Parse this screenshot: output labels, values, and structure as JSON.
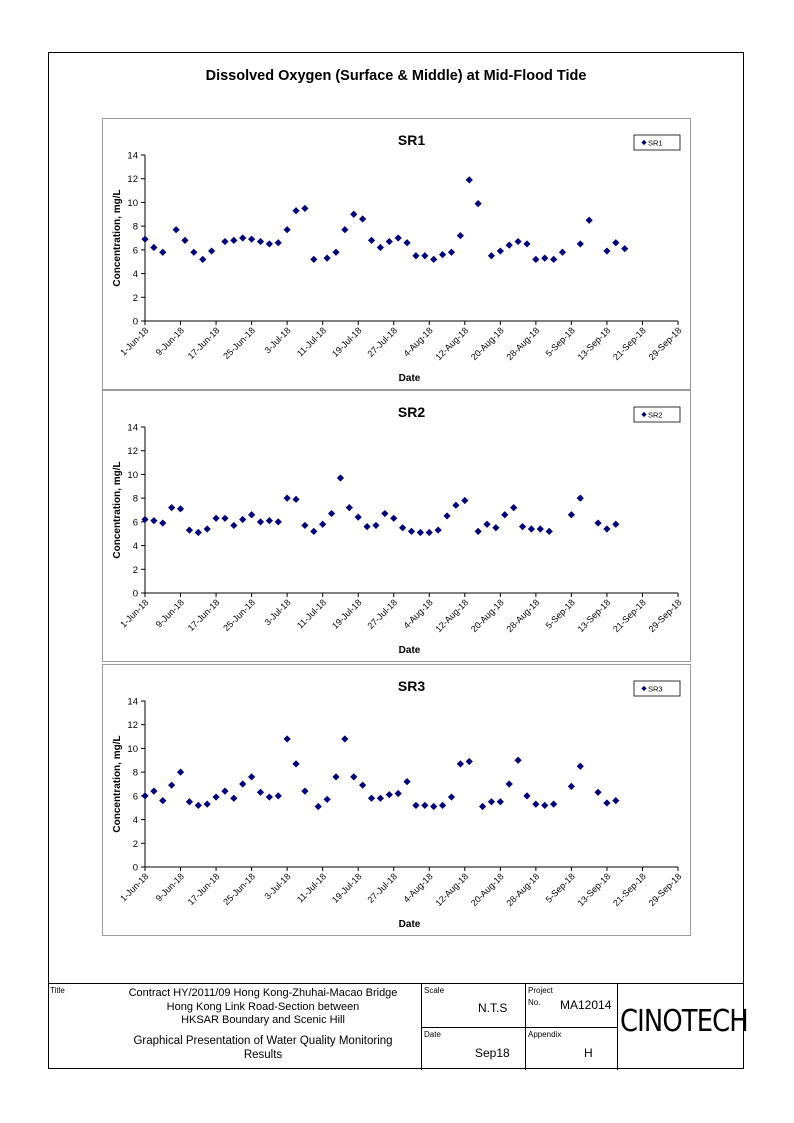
{
  "page_title": "Dissolved Oxygen (Surface & Middle) at Mid-Flood Tide",
  "chart_data": [
    {
      "type": "scatter",
      "title": "SR1",
      "xlabel": "Date",
      "ylabel": "Concentration, mg/L",
      "ylim": [
        0,
        14
      ],
      "yticks": [
        "0",
        "2",
        "4",
        "6",
        "8",
        "10",
        "12",
        "14"
      ],
      "xlim": [
        "2018-06-01",
        "2018-09-29"
      ],
      "xticks": [
        "1-Jun-18",
        "9-Jun-18",
        "17-Jun-18",
        "25-Jun-18",
        "3-Jul-18",
        "11-Jul-18",
        "19-Jul-18",
        "27-Jul-18",
        "4-Aug-18",
        "12-Aug-18",
        "20-Aug-18",
        "28-Aug-18",
        "5-Sep-18",
        "13-Sep-18",
        "21-Sep-18",
        "29-Sep-18"
      ],
      "legend": "top-right",
      "marker_color": "#00007a",
      "series": [
        {
          "name": "SR1",
          "points": [
            [
              "2018-06-01",
              6.9
            ],
            [
              "2018-06-03",
              6.2
            ],
            [
              "2018-06-05",
              5.8
            ],
            [
              "2018-06-08",
              7.7
            ],
            [
              "2018-06-10",
              6.8
            ],
            [
              "2018-06-12",
              5.8
            ],
            [
              "2018-06-14",
              5.2
            ],
            [
              "2018-06-16",
              5.9
            ],
            [
              "2018-06-19",
              6.7
            ],
            [
              "2018-06-21",
              6.8
            ],
            [
              "2018-06-23",
              7.0
            ],
            [
              "2018-06-25",
              6.9
            ],
            [
              "2018-06-27",
              6.7
            ],
            [
              "2018-06-29",
              6.5
            ],
            [
              "2018-07-01",
              6.6
            ],
            [
              "2018-07-03",
              7.7
            ],
            [
              "2018-07-05",
              9.3
            ],
            [
              "2018-07-07",
              9.5
            ],
            [
              "2018-07-09",
              5.2
            ],
            [
              "2018-07-12",
              5.3
            ],
            [
              "2018-07-14",
              5.8
            ],
            [
              "2018-07-16",
              7.7
            ],
            [
              "2018-07-18",
              9.0
            ],
            [
              "2018-07-20",
              8.6
            ],
            [
              "2018-07-22",
              6.8
            ],
            [
              "2018-07-24",
              6.2
            ],
            [
              "2018-07-26",
              6.7
            ],
            [
              "2018-07-28",
              7.0
            ],
            [
              "2018-07-30",
              6.6
            ],
            [
              "2018-08-01",
              5.5
            ],
            [
              "2018-08-03",
              5.5
            ],
            [
              "2018-08-05",
              5.2
            ],
            [
              "2018-08-07",
              5.6
            ],
            [
              "2018-08-09",
              5.8
            ],
            [
              "2018-08-11",
              7.2
            ],
            [
              "2018-08-13",
              11.9
            ],
            [
              "2018-08-15",
              9.9
            ],
            [
              "2018-08-18",
              5.5
            ],
            [
              "2018-08-20",
              5.9
            ],
            [
              "2018-08-22",
              6.4
            ],
            [
              "2018-08-24",
              6.7
            ],
            [
              "2018-08-26",
              6.5
            ],
            [
              "2018-08-28",
              5.2
            ],
            [
              "2018-08-30",
              5.3
            ],
            [
              "2018-09-01",
              5.2
            ],
            [
              "2018-09-03",
              5.8
            ],
            [
              "2018-09-07",
              6.5
            ],
            [
              "2018-09-09",
              8.5
            ],
            [
              "2018-09-13",
              5.9
            ],
            [
              "2018-09-15",
              6.6
            ],
            [
              "2018-09-17",
              6.1
            ]
          ]
        }
      ]
    },
    {
      "type": "scatter",
      "title": "SR2",
      "xlabel": "Date",
      "ylabel": "Concentration, mg/L",
      "ylim": [
        0,
        14
      ],
      "yticks": [
        "0",
        "2",
        "4",
        "6",
        "8",
        "10",
        "12",
        "14"
      ],
      "xlim": [
        "2018-06-01",
        "2018-09-29"
      ],
      "xticks": [
        "1-Jun-18",
        "9-Jun-18",
        "17-Jun-18",
        "25-Jun-18",
        "3-Jul-18",
        "11-Jul-18",
        "19-Jul-18",
        "27-Jul-18",
        "4-Aug-18",
        "12-Aug-18",
        "20-Aug-18",
        "28-Aug-18",
        "5-Sep-18",
        "13-Sep-18",
        "21-Sep-18",
        "29-Sep-18"
      ],
      "legend": "top-right",
      "marker_color": "#00007a",
      "series": [
        {
          "name": "SR2",
          "points": [
            [
              "2018-06-01",
              6.2
            ],
            [
              "2018-06-03",
              6.1
            ],
            [
              "2018-06-05",
              5.9
            ],
            [
              "2018-06-07",
              7.2
            ],
            [
              "2018-06-09",
              7.1
            ],
            [
              "2018-06-11",
              5.3
            ],
            [
              "2018-06-13",
              5.1
            ],
            [
              "2018-06-15",
              5.4
            ],
            [
              "2018-06-17",
              6.3
            ],
            [
              "2018-06-19",
              6.3
            ],
            [
              "2018-06-21",
              5.7
            ],
            [
              "2018-06-23",
              6.2
            ],
            [
              "2018-06-25",
              6.6
            ],
            [
              "2018-06-27",
              6.0
            ],
            [
              "2018-06-29",
              6.1
            ],
            [
              "2018-07-01",
              6.0
            ],
            [
              "2018-07-03",
              8.0
            ],
            [
              "2018-07-05",
              7.9
            ],
            [
              "2018-07-07",
              5.7
            ],
            [
              "2018-07-09",
              5.2
            ],
            [
              "2018-07-11",
              5.8
            ],
            [
              "2018-07-13",
              6.7
            ],
            [
              "2018-07-15",
              9.7
            ],
            [
              "2018-07-17",
              7.2
            ],
            [
              "2018-07-19",
              6.4
            ],
            [
              "2018-07-21",
              5.6
            ],
            [
              "2018-07-23",
              5.7
            ],
            [
              "2018-07-25",
              6.7
            ],
            [
              "2018-07-27",
              6.3
            ],
            [
              "2018-07-29",
              5.5
            ],
            [
              "2018-07-31",
              5.2
            ],
            [
              "2018-08-02",
              5.1
            ],
            [
              "2018-08-04",
              5.1
            ],
            [
              "2018-08-06",
              5.3
            ],
            [
              "2018-08-08",
              6.5
            ],
            [
              "2018-08-10",
              7.4
            ],
            [
              "2018-08-12",
              7.8
            ],
            [
              "2018-08-15",
              5.2
            ],
            [
              "2018-08-17",
              5.8
            ],
            [
              "2018-08-19",
              5.5
            ],
            [
              "2018-08-21",
              6.6
            ],
            [
              "2018-08-23",
              7.2
            ],
            [
              "2018-08-25",
              5.6
            ],
            [
              "2018-08-27",
              5.4
            ],
            [
              "2018-08-29",
              5.4
            ],
            [
              "2018-08-31",
              5.2
            ],
            [
              "2018-09-05",
              6.6
            ],
            [
              "2018-09-07",
              8.0
            ],
            [
              "2018-09-11",
              5.9
            ],
            [
              "2018-09-13",
              5.4
            ],
            [
              "2018-09-15",
              5.8
            ]
          ]
        }
      ]
    },
    {
      "type": "scatter",
      "title": "SR3",
      "xlabel": "Date",
      "ylabel": "Concentration, mg/L",
      "ylim": [
        0,
        14
      ],
      "yticks": [
        "0",
        "2",
        "4",
        "6",
        "8",
        "10",
        "12",
        "14"
      ],
      "xlim": [
        "2018-06-01",
        "2018-09-29"
      ],
      "xticks": [
        "1-Jun-18",
        "9-Jun-18",
        "17-Jun-18",
        "25-Jun-18",
        "3-Jul-18",
        "11-Jul-18",
        "19-Jul-18",
        "27-Jul-18",
        "4-Aug-18",
        "12-Aug-18",
        "20-Aug-18",
        "28-Aug-18",
        "5-Sep-18",
        "13-Sep-18",
        "21-Sep-18",
        "29-Sep-18"
      ],
      "legend": "top-right",
      "marker_color": "#00007a",
      "series": [
        {
          "name": "SR3",
          "points": [
            [
              "2018-06-01",
              6.0
            ],
            [
              "2018-06-03",
              6.4
            ],
            [
              "2018-06-05",
              5.6
            ],
            [
              "2018-06-07",
              6.9
            ],
            [
              "2018-06-09",
              8.0
            ],
            [
              "2018-06-11",
              5.5
            ],
            [
              "2018-06-13",
              5.2
            ],
            [
              "2018-06-15",
              5.3
            ],
            [
              "2018-06-17",
              5.9
            ],
            [
              "2018-06-19",
              6.4
            ],
            [
              "2018-06-21",
              5.8
            ],
            [
              "2018-06-23",
              7.0
            ],
            [
              "2018-06-25",
              7.6
            ],
            [
              "2018-06-27",
              6.3
            ],
            [
              "2018-06-29",
              5.9
            ],
            [
              "2018-07-01",
              6.0
            ],
            [
              "2018-07-03",
              10.8
            ],
            [
              "2018-07-05",
              8.7
            ],
            [
              "2018-07-07",
              6.4
            ],
            [
              "2018-07-10",
              5.1
            ],
            [
              "2018-07-12",
              5.7
            ],
            [
              "2018-07-14",
              7.6
            ],
            [
              "2018-07-16",
              10.8
            ],
            [
              "2018-07-18",
              7.6
            ],
            [
              "2018-07-20",
              6.9
            ],
            [
              "2018-07-22",
              5.8
            ],
            [
              "2018-07-24",
              5.8
            ],
            [
              "2018-07-26",
              6.1
            ],
            [
              "2018-07-28",
              6.2
            ],
            [
              "2018-07-30",
              7.2
            ],
            [
              "2018-08-01",
              5.2
            ],
            [
              "2018-08-03",
              5.2
            ],
            [
              "2018-08-05",
              5.1
            ],
            [
              "2018-08-07",
              5.2
            ],
            [
              "2018-08-09",
              5.9
            ],
            [
              "2018-08-11",
              8.7
            ],
            [
              "2018-08-13",
              8.9
            ],
            [
              "2018-08-16",
              5.1
            ],
            [
              "2018-08-18",
              5.5
            ],
            [
              "2018-08-20",
              5.5
            ],
            [
              "2018-08-22",
              7.0
            ],
            [
              "2018-08-24",
              9.0
            ],
            [
              "2018-08-26",
              6.0
            ],
            [
              "2018-08-28",
              5.3
            ],
            [
              "2018-08-30",
              5.2
            ],
            [
              "2018-09-01",
              5.3
            ],
            [
              "2018-09-05",
              6.8
            ],
            [
              "2018-09-07",
              8.5
            ],
            [
              "2018-09-11",
              6.3
            ],
            [
              "2018-09-13",
              5.4
            ],
            [
              "2018-09-15",
              5.6
            ]
          ]
        }
      ]
    }
  ],
  "title_block": {
    "title_label": "Title",
    "title_lines": [
      "Contract HY/2011/09 Hong Kong-Zhuhai-Macao Bridge",
      "Hong Kong Link Road-Section between",
      "HKSAR Boundary and Scenic Hill"
    ],
    "subtitle_lines": [
      "Graphical Presentation of Water Quality Monitoring",
      "Results"
    ],
    "scale_label": "Scale",
    "scale_value": "N.T.S",
    "project_label": "Project",
    "no_label": "No.",
    "project_no": "MA12014",
    "date_label": "Date",
    "date_value": "Sep18",
    "appendix_label": "Appendix",
    "appendix_value": "H",
    "logo_text": "CINOTECH"
  }
}
